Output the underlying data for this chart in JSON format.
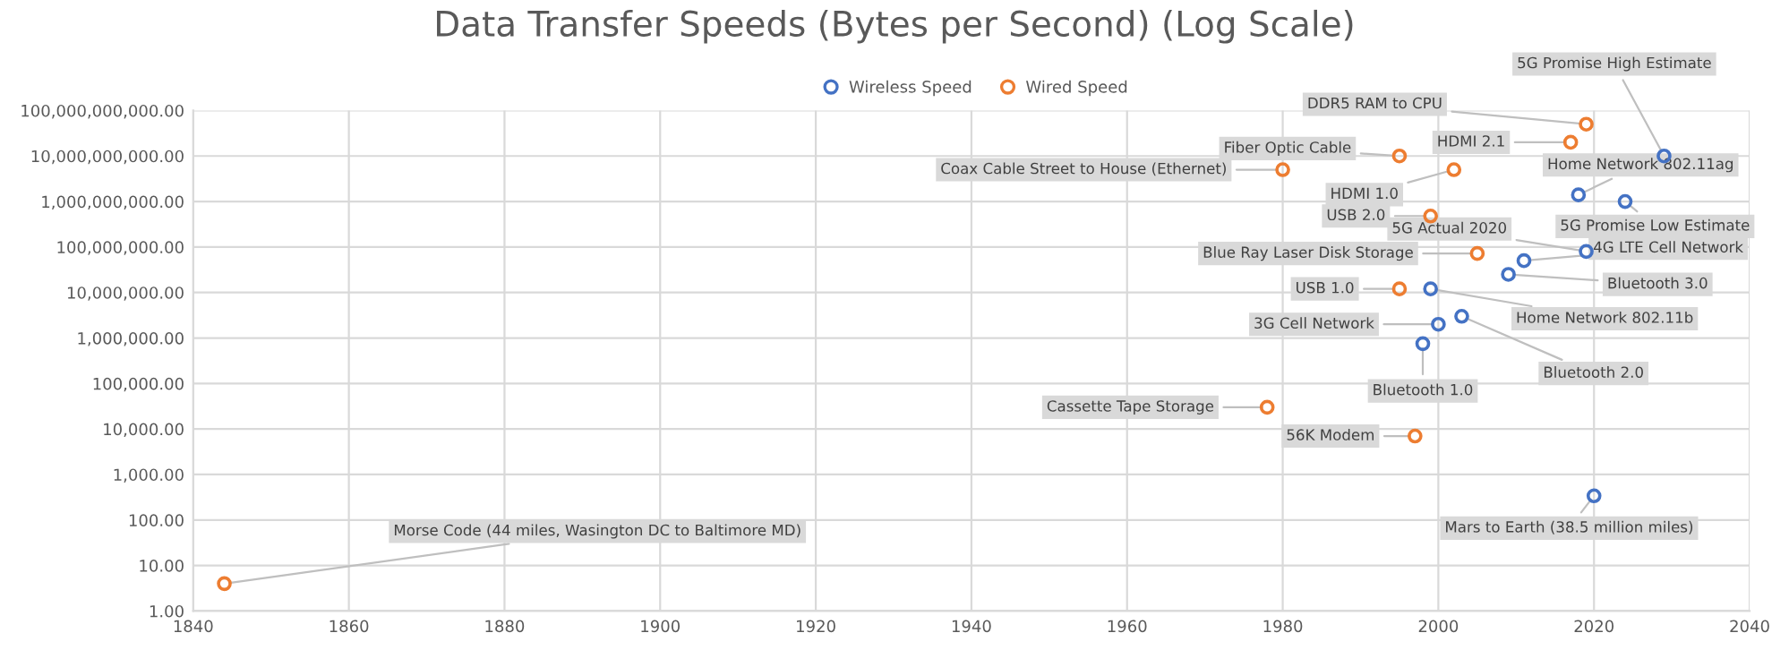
{
  "chart_data": {
    "type": "scatter",
    "title": "Data Transfer Speeds (Bytes per Second) (Log Scale)",
    "log": "y",
    "grid": true,
    "legend": "top",
    "marker": "circle",
    "xlim": [
      1840,
      2040
    ],
    "xticks": [
      1840,
      1860,
      1880,
      1900,
      1920,
      1940,
      1960,
      1980,
      2000,
      2020,
      2040
    ],
    "ylim": [
      1,
      100000000000
    ],
    "yticks": [
      {
        "value": 1,
        "label": "1.00"
      },
      {
        "value": 10,
        "label": "10.00"
      },
      {
        "value": 100,
        "label": "100.00"
      },
      {
        "value": 1000,
        "label": "1,000.00"
      },
      {
        "value": 10000,
        "label": "10,000.00"
      },
      {
        "value": 100000,
        "label": "100,000.00"
      },
      {
        "value": 1000000,
        "label": "1,000,000.00"
      },
      {
        "value": 10000000,
        "label": "10,000,000.00"
      },
      {
        "value": 100000000,
        "label": "100,000,000.00"
      },
      {
        "value": 1000000000,
        "label": "1,000,000,000.00"
      },
      {
        "value": 10000000000,
        "label": "10,000,000,000.00"
      },
      {
        "value": 100000000000,
        "label": "100,000,000,000.00"
      }
    ],
    "series": [
      {
        "name": "Wireless Speed",
        "color": "#4472c4",
        "x": [
          2029,
          2018,
          2024,
          2019,
          2011,
          2009,
          1999,
          2003,
          2000,
          1998,
          2020
        ],
        "values": [
          10000000000,
          1400000000,
          1000000000,
          80000000,
          50000000,
          25000000,
          12000000,
          3000000,
          2000000,
          750000,
          340
        ]
      },
      {
        "name": "Wired Speed",
        "color": "#ed7d31",
        "x": [
          1844,
          1980,
          1995,
          2019,
          2017,
          2002,
          1999,
          2005,
          1995,
          1978,
          1997
        ],
        "values": [
          4,
          5000000000,
          10000000000,
          50000000000,
          20000000000,
          5000000000,
          480000000,
          72000000,
          12000000,
          30000,
          7000
        ]
      }
    ],
    "annotations": [
      {
        "text": "5G Promise High Estimate",
        "x": 2029,
        "y": 10000000000
      },
      {
        "text": "Home Network 802.11ag",
        "x": 2018,
        "y": 1400000000
      },
      {
        "text": "5G Promise Low Estimate",
        "x": 2024,
        "y": 1000000000
      },
      {
        "text": "5G Actual 2020",
        "x": 2019,
        "y": 80000000
      },
      {
        "text": "4G LTE Cell Network",
        "x": 2011,
        "y": 50000000
      },
      {
        "text": "Bluetooth 3.0",
        "x": 2009,
        "y": 25000000
      },
      {
        "text": "Home Network 802.11b",
        "x": 1999,
        "y": 12000000
      },
      {
        "text": "Bluetooth 2.0",
        "x": 2003,
        "y": 3000000
      },
      {
        "text": "3G Cell Network",
        "x": 2000,
        "y": 2000000
      },
      {
        "text": "Bluetooth 1.0",
        "x": 1998,
        "y": 750000
      },
      {
        "text": "Mars to Earth (38.5 million miles)",
        "x": 2020,
        "y": 340
      },
      {
        "text": "Morse Code (44 miles, Wasington DC to Baltimore MD)",
        "x": 1844,
        "y": 4
      },
      {
        "text": "Coax Cable Street to House (Ethernet)",
        "x": 1980,
        "y": 5000000000
      },
      {
        "text": "Fiber Optic Cable",
        "x": 1995,
        "y": 10000000000
      },
      {
        "text": "DDR5 RAM to CPU",
        "x": 2019,
        "y": 50000000000
      },
      {
        "text": "HDMI 2.1",
        "x": 2017,
        "y": 20000000000
      },
      {
        "text": "HDMI 1.0",
        "x": 2002,
        "y": 5000000000
      },
      {
        "text": "USB 2.0",
        "x": 1999,
        "y": 480000000
      },
      {
        "text": "Blue Ray Laser Disk Storage",
        "x": 2005,
        "y": 72000000
      },
      {
        "text": "USB 1.0",
        "x": 1995,
        "y": 12000000
      },
      {
        "text": "Cassette Tape Storage",
        "x": 1978,
        "y": 30000
      },
      {
        "text": "56K Modem",
        "x": 1997,
        "y": 7000
      }
    ]
  }
}
